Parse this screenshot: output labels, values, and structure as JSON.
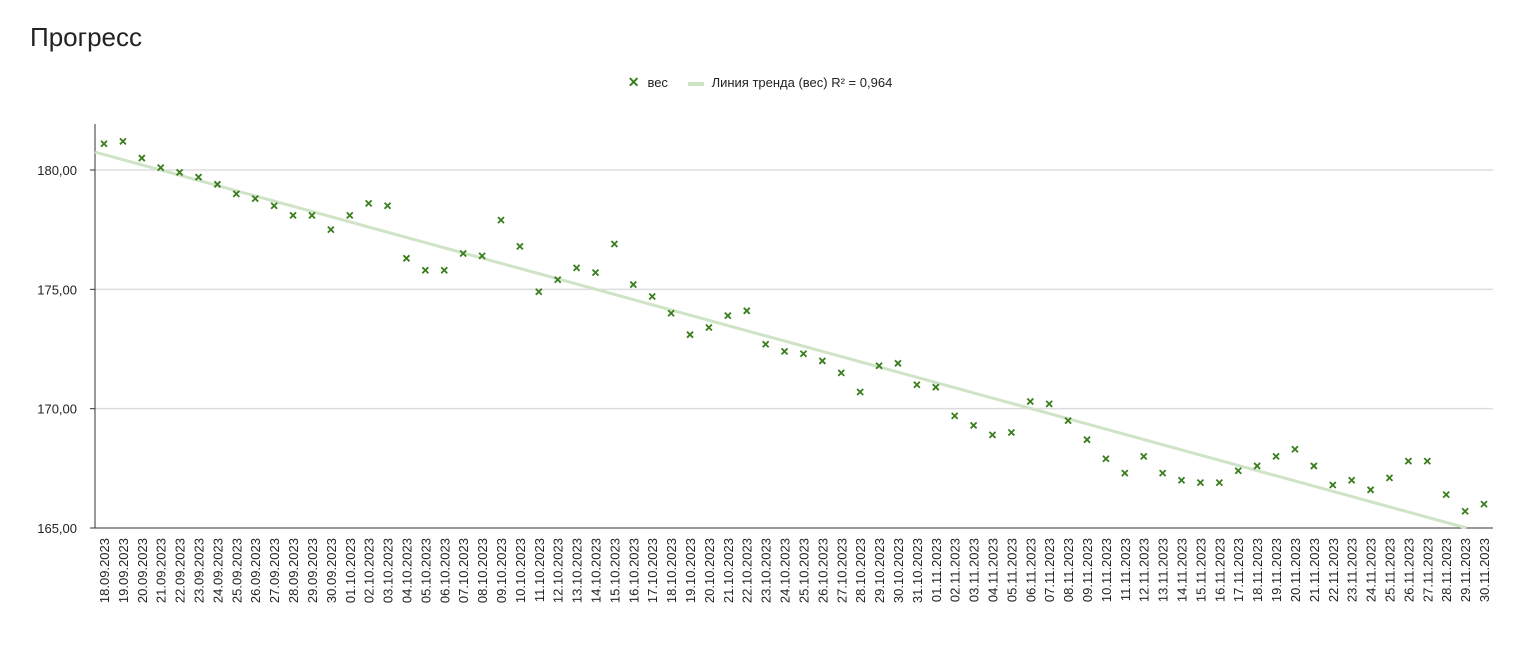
{
  "title": "Прогресс",
  "legend": {
    "series_label": "вес",
    "trend_label": "Линия тренда (вес) R² = 0,964"
  },
  "colors": {
    "marker": "#3a7d1e",
    "trend": "#cfe3c6",
    "grid": "#dddddd",
    "axis": "#333333"
  },
  "chart_data": {
    "type": "scatter",
    "title": "Прогресс",
    "xlabel": "",
    "ylabel": "",
    "ylim": [
      165,
      182
    ],
    "yticks": [
      "165,00",
      "170,00",
      "175,00",
      "180,00"
    ],
    "ytick_values": [
      165,
      170,
      175,
      180
    ],
    "grid": true,
    "legend_position": "top-center",
    "x": [
      "18.09.2023",
      "19.09.2023",
      "20.09.2023",
      "21.09.2023",
      "22.09.2023",
      "23.09.2023",
      "24.09.2023",
      "25.09.2023",
      "26.09.2023",
      "27.09.2023",
      "28.09.2023",
      "29.09.2023",
      "30.09.2023",
      "01.10.2023",
      "02.10.2023",
      "03.10.2023",
      "04.10.2023",
      "05.10.2023",
      "06.10.2023",
      "07.10.2023",
      "08.10.2023",
      "09.10.2023",
      "10.10.2023",
      "11.10.2023",
      "12.10.2023",
      "13.10.2023",
      "14.10.2023",
      "15.10.2023",
      "16.10.2023",
      "17.10.2023",
      "18.10.2023",
      "19.10.2023",
      "20.10.2023",
      "21.10.2023",
      "22.10.2023",
      "23.10.2023",
      "24.10.2023",
      "25.10.2023",
      "26.10.2023",
      "27.10.2023",
      "28.10.2023",
      "29.10.2023",
      "30.10.2023",
      "31.10.2023",
      "01.11.2023",
      "02.11.2023",
      "03.11.2023",
      "04.11.2023",
      "05.11.2023",
      "06.11.2023",
      "07.11.2023",
      "08.11.2023",
      "09.11.2023",
      "10.11.2023",
      "11.11.2023",
      "12.11.2023",
      "13.11.2023",
      "14.11.2023",
      "15.11.2023",
      "16.11.2023",
      "17.11.2023",
      "18.11.2023",
      "19.11.2023",
      "20.11.2023",
      "21.11.2023",
      "22.11.2023",
      "23.11.2023",
      "24.11.2023",
      "25.11.2023",
      "26.11.2023",
      "27.11.2023",
      "28.11.2023",
      "29.11.2023",
      "30.11.2023"
    ],
    "series": [
      {
        "name": "вес",
        "values": [
          181.1,
          181.2,
          180.5,
          180.1,
          179.9,
          179.7,
          179.4,
          179.0,
          178.8,
          178.5,
          178.1,
          178.1,
          177.5,
          178.1,
          178.6,
          178.5,
          176.3,
          175.8,
          175.8,
          176.5,
          176.4,
          177.9,
          176.8,
          174.9,
          175.4,
          175.9,
          175.7,
          176.9,
          175.2,
          174.7,
          174.0,
          173.1,
          173.4,
          173.9,
          174.1,
          172.7,
          172.4,
          172.3,
          172.0,
          171.5,
          170.7,
          171.8,
          171.9,
          171.0,
          170.9,
          169.7,
          169.3,
          168.9,
          169.0,
          170.3,
          170.2,
          169.5,
          168.7,
          167.9,
          167.3,
          168.0,
          167.3,
          167.0,
          166.9,
          166.9,
          167.4,
          167.6,
          168.0,
          168.3,
          167.6,
          166.8,
          167.0,
          166.6,
          167.1,
          167.8,
          167.8,
          166.4,
          165.7,
          166.0
        ]
      }
    ],
    "trendline": {
      "type": "linear",
      "start": 180.65,
      "end": 164.8,
      "r2": "0,964"
    }
  }
}
